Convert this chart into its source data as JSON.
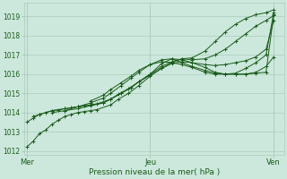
{
  "bg_color": "#cce8dc",
  "plot_bg_color": "#cce8dc",
  "grid_color": "#aaccbb",
  "line_color": "#1a5c1a",
  "xlabel": "Pression niveau de la mer( hPa )",
  "xlabel_color": "#1a5c1a",
  "tick_color": "#1a5c1a",
  "xtick_labels": [
    "Mer",
    "Jeu",
    "Ven"
  ],
  "xtick_positions": [
    0.0,
    0.485,
    0.97
  ],
  "ylim": [
    1011.8,
    1019.7
  ],
  "yticks": [
    1012,
    1013,
    1014,
    1015,
    1016,
    1017,
    1018,
    1019
  ],
  "xlim": [
    -0.01,
    1.01
  ],
  "series": [
    {
      "x": [
        0.0,
        0.025,
        0.05,
        0.075,
        0.1,
        0.125,
        0.15,
        0.175,
        0.2,
        0.225,
        0.25,
        0.275,
        0.33,
        0.36,
        0.4,
        0.44,
        0.485,
        0.53,
        0.57,
        0.61,
        0.65,
        0.7,
        0.74,
        0.78,
        0.82,
        0.86,
        0.9,
        0.94,
        0.97
      ],
      "y": [
        1012.2,
        1012.5,
        1012.9,
        1013.1,
        1013.4,
        1013.6,
        1013.8,
        1013.9,
        1014.0,
        1014.05,
        1014.1,
        1014.15,
        1014.4,
        1014.7,
        1015.0,
        1015.4,
        1015.9,
        1016.3,
        1016.6,
        1016.8,
        1016.85,
        1017.2,
        1017.7,
        1018.2,
        1018.6,
        1018.9,
        1019.1,
        1019.2,
        1019.35
      ]
    },
    {
      "x": [
        0.0,
        0.025,
        0.05,
        0.075,
        0.1,
        0.125,
        0.15,
        0.175,
        0.2,
        0.225,
        0.25,
        0.275,
        0.33,
        0.36,
        0.4,
        0.44,
        0.485,
        0.53,
        0.57,
        0.61,
        0.65,
        0.7,
        0.74,
        0.78,
        0.82,
        0.86,
        0.9,
        0.94,
        0.97
      ],
      "y": [
        1013.5,
        1013.7,
        1013.9,
        1014.0,
        1014.1,
        1014.15,
        1014.2,
        1014.25,
        1014.3,
        1014.35,
        1014.4,
        1014.45,
        1014.7,
        1014.95,
        1015.25,
        1015.6,
        1016.0,
        1016.4,
        1016.65,
        1016.8,
        1016.75,
        1016.8,
        1017.0,
        1017.3,
        1017.7,
        1018.1,
        1018.5,
        1018.8,
        1019.05
      ]
    },
    {
      "x": [
        0.025,
        0.05,
        0.1,
        0.15,
        0.2,
        0.25,
        0.3,
        0.33,
        0.37,
        0.41,
        0.44,
        0.485,
        0.53,
        0.57,
        0.61,
        0.65,
        0.7,
        0.74,
        0.78,
        0.82,
        0.86,
        0.9,
        0.94,
        0.97
      ],
      "y": [
        1013.8,
        1013.9,
        1014.1,
        1014.2,
        1014.3,
        1014.4,
        1014.5,
        1014.7,
        1015.0,
        1015.3,
        1015.6,
        1015.95,
        1016.3,
        1016.55,
        1016.65,
        1016.6,
        1016.5,
        1016.45,
        1016.5,
        1016.6,
        1016.7,
        1016.9,
        1017.3,
        1018.8
      ]
    },
    {
      "x": [
        0.1,
        0.15,
        0.2,
        0.25,
        0.3,
        0.33,
        0.37,
        0.41,
        0.44,
        0.485,
        0.53,
        0.57,
        0.61,
        0.65,
        0.7,
        0.74,
        0.78,
        0.82,
        0.86,
        0.9,
        0.94,
        0.97
      ],
      "y": [
        1014.0,
        1014.1,
        1014.2,
        1014.35,
        1014.5,
        1014.7,
        1015.0,
        1015.3,
        1015.6,
        1016.0,
        1016.55,
        1016.8,
        1016.75,
        1016.6,
        1016.35,
        1016.1,
        1016.0,
        1016.0,
        1016.0,
        1016.1,
        1016.4,
        1016.9
      ]
    },
    {
      "x": [
        0.15,
        0.2,
        0.25,
        0.3,
        0.33,
        0.37,
        0.41,
        0.44,
        0.485,
        0.53,
        0.57,
        0.61,
        0.65,
        0.7,
        0.74,
        0.78,
        0.82,
        0.86,
        0.9,
        0.94,
        0.97
      ],
      "y": [
        1014.1,
        1014.3,
        1014.5,
        1014.75,
        1015.0,
        1015.4,
        1015.8,
        1016.1,
        1016.5,
        1016.75,
        1016.8,
        1016.6,
        1016.4,
        1016.2,
        1016.05,
        1016.0,
        1016.05,
        1016.3,
        1016.6,
        1017.0,
        1019.2
      ]
    },
    {
      "x": [
        0.25,
        0.3,
        0.33,
        0.37,
        0.41,
        0.44,
        0.485,
        0.53,
        0.57,
        0.61,
        0.65,
        0.7,
        0.74,
        0.78,
        0.82,
        0.86,
        0.9,
        0.94,
        0.97
      ],
      "y": [
        1014.6,
        1014.9,
        1015.2,
        1015.55,
        1015.9,
        1016.2,
        1016.5,
        1016.65,
        1016.6,
        1016.5,
        1016.35,
        1016.1,
        1016.0,
        1016.0,
        1016.0,
        1016.0,
        1016.05,
        1016.1,
        1019.1
      ]
    }
  ]
}
